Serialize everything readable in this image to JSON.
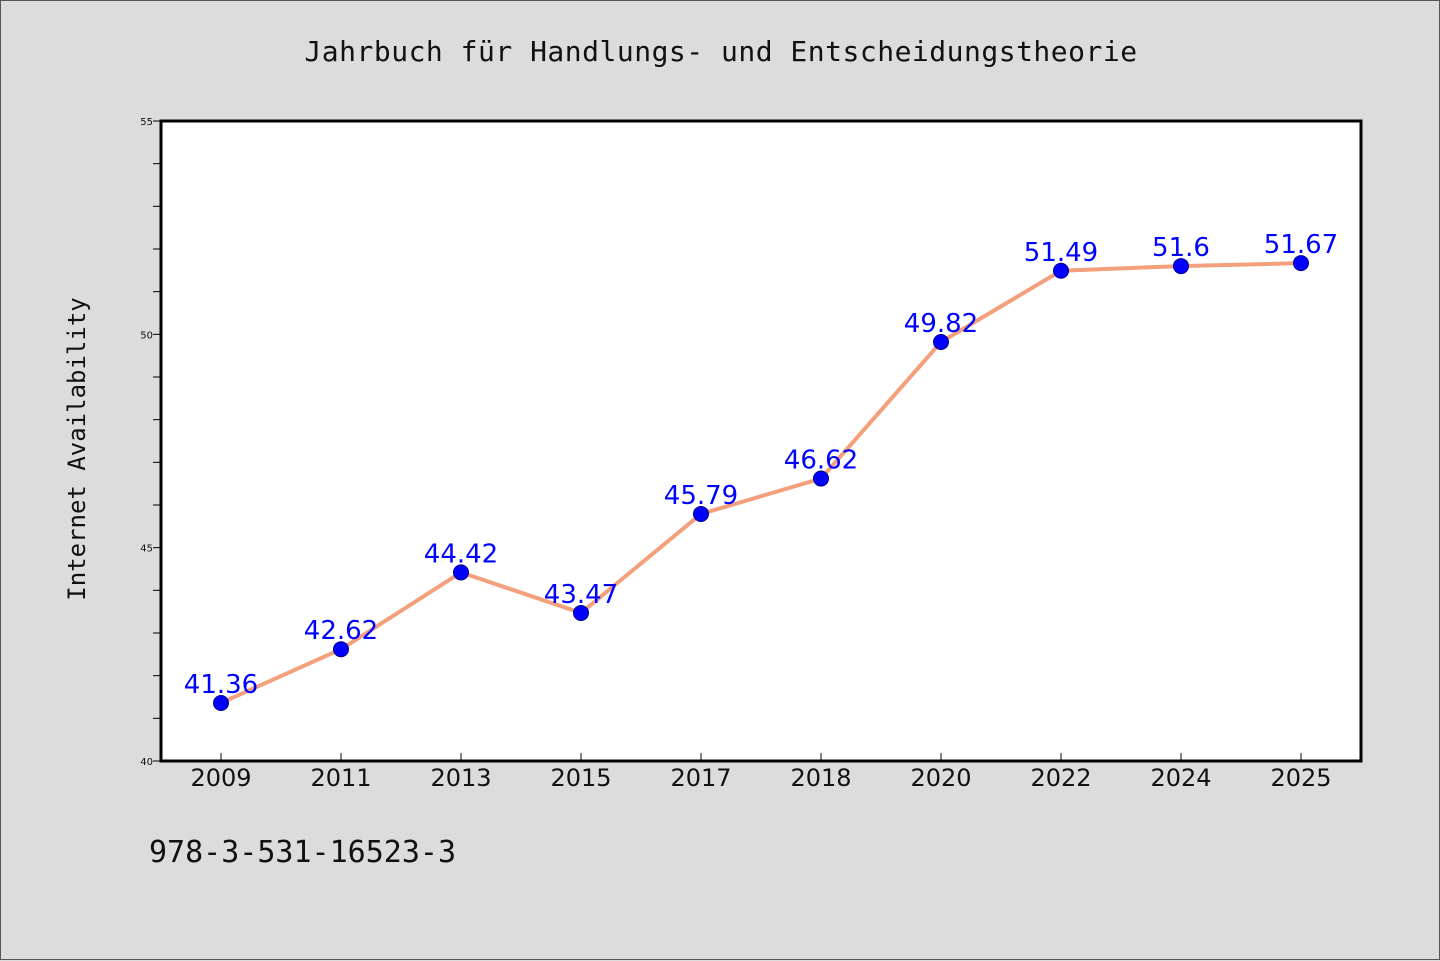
{
  "chart_data": {
    "type": "line",
    "title": "Jahrbuch für Handlungs- und Entscheidungstheorie",
    "xlabel": "",
    "ylabel": "Internet Availability",
    "categories": [
      "2009",
      "2011",
      "2013",
      "2015",
      "2017",
      "2018",
      "2020",
      "2022",
      "2024",
      "2025"
    ],
    "series": [
      {
        "values": [
          41.36,
          42.62,
          44.42,
          43.47,
          45.79,
          46.62,
          49.82,
          51.49,
          51.6,
          51.67
        ],
        "labels": [
          "41.36",
          "42.62",
          "44.42",
          "43.47",
          "45.79",
          "46.62",
          "49.82",
          "51.49",
          "51.6",
          "51.67"
        ],
        "line_color": "#f4a07c",
        "marker_color": "#0000ff"
      }
    ],
    "ylim": [
      40,
      55
    ],
    "yticks": [
      "40",
      "45",
      "50",
      "55"
    ],
    "grid": false,
    "legend": "none",
    "background": "#dcdcdc",
    "plot_background": "#ffffff"
  },
  "footer": {
    "isbn": "978-3-531-16523-3"
  }
}
